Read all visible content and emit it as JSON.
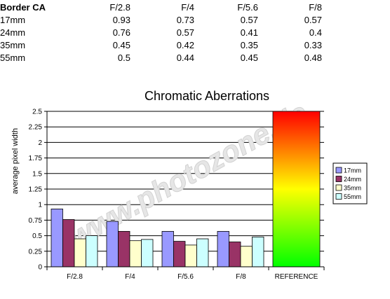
{
  "table": {
    "corner": "Border CA",
    "columns": [
      "F/2.8",
      "F/4",
      "F/5.6",
      "F/8"
    ],
    "rows": [
      {
        "label": "17mm",
        "values": [
          "0.93",
          "0.73",
          "0.57",
          "0.57"
        ]
      },
      {
        "label": "24mm",
        "values": [
          "0.76",
          "0.57",
          "0.41",
          "0.4"
        ]
      },
      {
        "label": "35mm",
        "values": [
          "0.45",
          "0.42",
          "0.35",
          "0.33"
        ]
      },
      {
        "label": "55mm",
        "values": [
          "0.5",
          "0.44",
          "0.45",
          "0.48"
        ]
      }
    ]
  },
  "watermark": "www.photozone.de",
  "chart_data": {
    "type": "bar",
    "title": "Chromatic Aberrations",
    "xlabel": "",
    "ylabel": "average pixel width",
    "ylim": [
      0,
      2.5
    ],
    "yticks": [
      "0",
      "0.25",
      "0.5",
      "0.75",
      "1",
      "1.25",
      "1.5",
      "1.75",
      "2",
      "2.25",
      "2.5"
    ],
    "categories": [
      "F/2.8",
      "F/4",
      "F/5.6",
      "F/8"
    ],
    "series": [
      {
        "name": "17mm",
        "color": "#9999ff",
        "values": [
          0.93,
          0.73,
          0.57,
          0.57
        ]
      },
      {
        "name": "24mm",
        "color": "#993366",
        "values": [
          0.76,
          0.57,
          0.41,
          0.4
        ]
      },
      {
        "name": "35mm",
        "color": "#ffffcc",
        "values": [
          0.45,
          0.42,
          0.35,
          0.33
        ]
      },
      {
        "name": "55mm",
        "color": "#ccffff",
        "values": [
          0.5,
          0.44,
          0.45,
          0.48
        ]
      }
    ],
    "reference": {
      "label": "REFERENCE",
      "value": 2.5,
      "gradient": [
        "#ff0000",
        "#ffff00",
        "#00ff00"
      ]
    },
    "grid": true,
    "legend": "right"
  }
}
